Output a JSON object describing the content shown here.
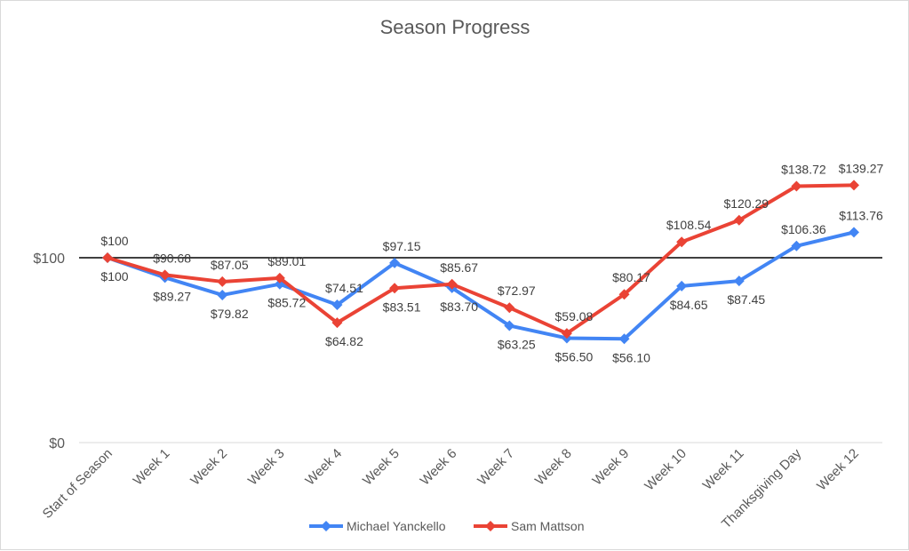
{
  "chart_data": {
    "type": "line",
    "title": "Season Progress",
    "xlabel": "",
    "ylabel": "",
    "ylim": [
      0,
      140
    ],
    "yticks": [
      {
        "value": 0,
        "label": "$0"
      },
      {
        "value": 100,
        "label": "$100"
      }
    ],
    "grid": false,
    "legend_position": "bottom",
    "categories": [
      "Start of Season",
      "Week 1",
      "Week 2",
      "Week 3",
      "Week 4",
      "Week 5",
      "Week 6",
      "Week 7",
      "Week 8",
      "Week 9",
      "Week 10",
      "Week 11",
      "Thanksgiving Day",
      "Week 12"
    ],
    "series": [
      {
        "name": "Michael Yanckello",
        "color": "#4285f4",
        "values": [
          100,
          89.27,
          79.82,
          85.72,
          74.51,
          97.15,
          83.7,
          63.25,
          56.5,
          56.1,
          84.65,
          87.45,
          106.36,
          113.76
        ],
        "labels": [
          "$100",
          "$89.27",
          "$79.82",
          "$85.72",
          "$74.51",
          "$97.15",
          "$83.70",
          "$63.25",
          "$56.50",
          "$56.10",
          "$84.65",
          "$87.45",
          "$106.36",
          "$113.76"
        ],
        "label_side": [
          "below",
          "below",
          "below",
          "below",
          "above",
          "above",
          "below",
          "below",
          "below",
          "below",
          "below",
          "below",
          "above",
          "above"
        ]
      },
      {
        "name": "Sam Mattson",
        "color": "#ea4335",
        "values": [
          100,
          90.68,
          87.05,
          89.01,
          64.82,
          83.51,
          85.67,
          72.97,
          59.08,
          80.17,
          108.54,
          120.29,
          138.72,
          139.27
        ],
        "labels": [
          "$100",
          "$90.68",
          "$87.05",
          "$89.01",
          "$64.82",
          "$83.51",
          "$85.67",
          "$72.97",
          "$59.08",
          "$80.17",
          "$108.54",
          "$120.29",
          "$138.72",
          "$139.27"
        ],
        "label_side": [
          "above",
          "above",
          "above",
          "above",
          "below",
          "below",
          "above",
          "above",
          "above",
          "above",
          "above",
          "above",
          "above",
          "above"
        ]
      }
    ]
  }
}
